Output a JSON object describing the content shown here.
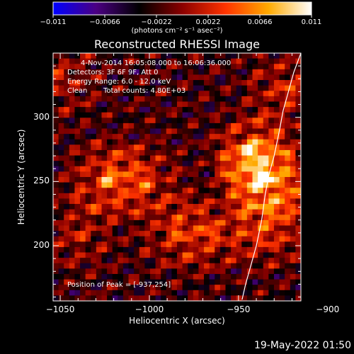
{
  "colorbar": {
    "tick_labels": [
      "-0.011",
      "-0.0066",
      "-0.0022",
      "0.0022",
      "0.0066",
      "0.011"
    ],
    "units_text": "(photons cm⁻² s⁻¹ asec⁻²)",
    "colors": [
      "#0000ff",
      "#4b0082",
      "#000000",
      "#8b0000",
      "#ff3300",
      "#ffaa00",
      "#ffffff"
    ]
  },
  "chart_data": {
    "type": "heatmap",
    "title": "Reconstructed RHESSI Image",
    "xlabel": "Heliocentric X (arcsec)",
    "ylabel": "Heliocentric Y (arcsec)",
    "xlim": [
      -1054,
      -915
    ],
    "ylim": [
      157,
      350
    ],
    "x_ticks": [
      -1050,
      -1000,
      -950,
      -900
    ],
    "x_tick_labels": [
      "−1050",
      "−1000",
      "−950",
      "−900"
    ],
    "y_ticks": [
      200,
      250,
      300
    ],
    "y_tick_labels": [
      "200",
      "250",
      "300"
    ],
    "color_range": [
      -0.011,
      0.011
    ],
    "peak": [
      -937,
      254
    ],
    "sources": [
      {
        "x": -937,
        "y": 254,
        "value": 0.011
      },
      {
        "x": -942,
        "y": 272,
        "value": 0.0085
      },
      {
        "x": -1023,
        "y": 252,
        "value": 0.0075
      },
      {
        "x": -1003,
        "y": 250,
        "value": 0.005
      },
      {
        "x": -985,
        "y": 211,
        "value": 0.005
      },
      {
        "x": -965,
        "y": 210,
        "value": 0.005
      },
      {
        "x": -1040,
        "y": 210,
        "value": 0.004
      },
      {
        "x": -935,
        "y": 210,
        "value": 0.0045
      },
      {
        "x": -923,
        "y": 320,
        "value": 0.0055
      },
      {
        "x": -930,
        "y": 225,
        "value": 0.004
      },
      {
        "x": -905,
        "y": 240,
        "value": 0.0035
      },
      {
        "x": -1050,
        "y": 330,
        "value": 0.004
      }
    ],
    "limb": [
      [
        -948,
        158
      ],
      [
        -946,
        170
      ],
      [
        -943,
        185
      ],
      [
        -940,
        200
      ],
      [
        -937,
        220
      ],
      [
        -935,
        240
      ],
      [
        -933,
        255
      ],
      [
        -930,
        270
      ],
      [
        -927,
        290
      ],
      [
        -925,
        305
      ],
      [
        -922,
        320
      ],
      [
        -919,
        335
      ],
      [
        -915,
        350
      ]
    ]
  },
  "annotations": {
    "line1": "4-Nov-2014 16:05:08.000 to 16:06:36.000",
    "line2": "Detectors: 3F 6F 9F, Att 0",
    "line3": "Energy Range: 6.0 - 12.0 keV",
    "line4_label": "Clean",
    "line4_counts": "Total counts: 4.80E+03",
    "peak": "Position of Peak = [-937,254]"
  },
  "footer": {
    "timestamp": "19-May-2022 01:50"
  }
}
